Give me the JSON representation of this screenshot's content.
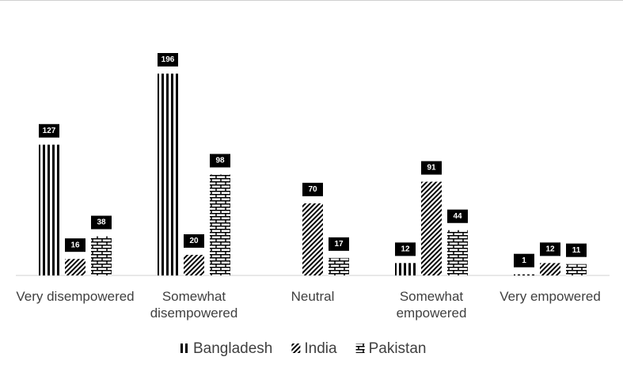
{
  "chart_data": {
    "type": "bar",
    "categories": [
      "Very disempowered",
      "Somewhat disempowered",
      "Neutral",
      "Somewhat empowered",
      "Very empowered"
    ],
    "series": [
      {
        "name": "Bangladesh",
        "color": "#000000",
        "values": [
          127,
          196,
          null,
          12,
          1
        ]
      },
      {
        "name": "India",
        "color": "#000000",
        "values": [
          16,
          20,
          70,
          91,
          12
        ]
      },
      {
        "name": "Pakistan",
        "color": "#000000",
        "values": [
          38,
          98,
          17,
          44,
          11
        ]
      }
    ]
  }
}
